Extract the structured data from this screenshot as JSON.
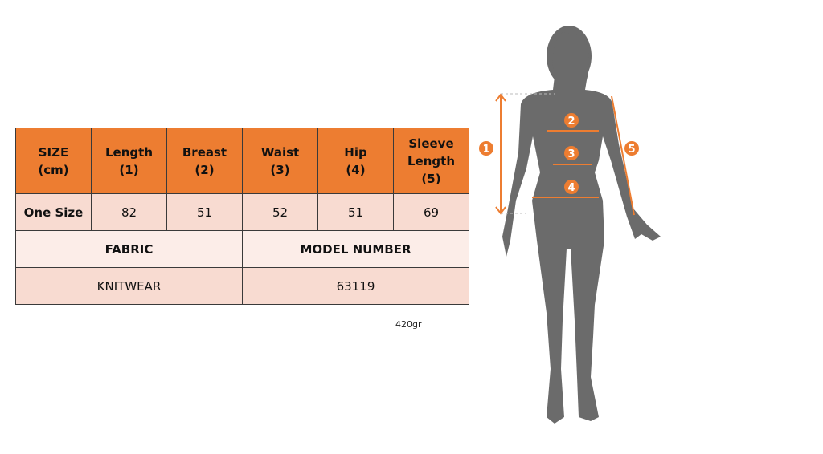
{
  "table": {
    "headers": [
      [
        "SIZE",
        "(cm)"
      ],
      [
        "Length",
        "(1)"
      ],
      [
        "Breast",
        "(2)"
      ],
      [
        "Waist",
        "(3)"
      ],
      [
        "Hip",
        "(4)"
      ],
      [
        "Sleeve",
        "Length",
        "(5)"
      ]
    ],
    "row": [
      "One Size",
      "82",
      "51",
      "52",
      "51",
      "69"
    ],
    "fabric_label": "FABRIC",
    "model_label": "MODEL NUMBER",
    "fabric_value": "KNITWEAR",
    "model_value": "63119"
  },
  "weight": "420gr",
  "figure": {
    "markers": [
      "1",
      "2",
      "3",
      "4",
      "5"
    ],
    "accent_color": "#ED7D31",
    "silhouette_color": "#6B6B6B"
  }
}
